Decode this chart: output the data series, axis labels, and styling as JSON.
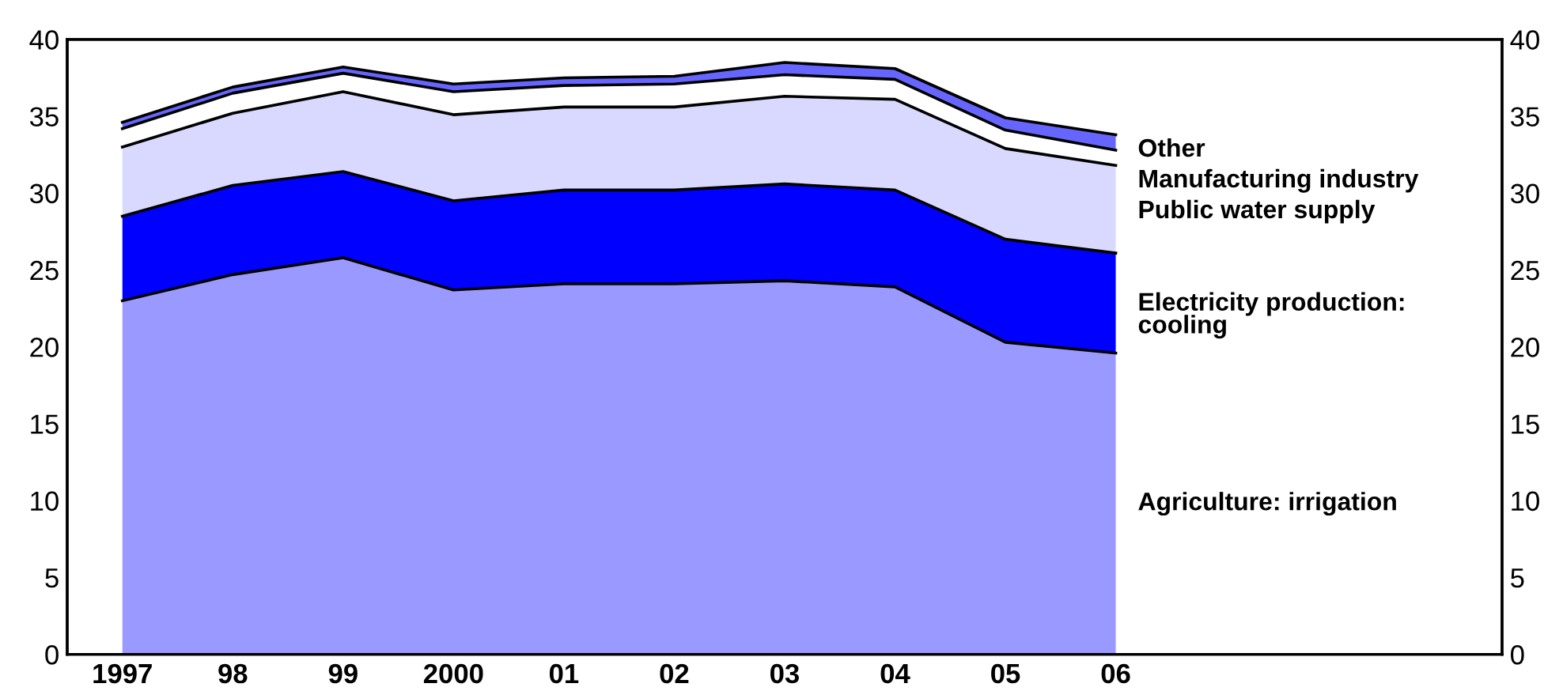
{
  "chart_data": {
    "type": "area",
    "stacked": true,
    "categories": [
      "1997",
      "98",
      "99",
      "2000",
      "01",
      "02",
      "03",
      "04",
      "05",
      "06",
      null,
      null,
      null
    ],
    "series": [
      {
        "name": "Agriculture: irrigation",
        "color": "#9999ff",
        "values": [
          23.0,
          24.7,
          25.8,
          23.7,
          24.1,
          24.1,
          24.3,
          23.9,
          20.3,
          19.6,
          null,
          null,
          null
        ]
      },
      {
        "name": "Electricity production: cooling",
        "color": "#0000ff",
        "values": [
          5.5,
          5.8,
          5.6,
          5.8,
          6.1,
          6.1,
          6.3,
          6.3,
          6.7,
          6.5,
          null,
          null,
          null
        ]
      },
      {
        "name": "Public water supply",
        "color": "#d9d9ff",
        "values": [
          4.5,
          4.7,
          5.2,
          5.6,
          5.4,
          5.4,
          5.7,
          5.9,
          5.9,
          5.7,
          null,
          null,
          null
        ]
      },
      {
        "name": "Manufacturing industry",
        "color": "#ffffff",
        "values": [
          1.2,
          1.3,
          1.2,
          1.5,
          1.4,
          1.5,
          1.4,
          1.3,
          1.2,
          1.0,
          null,
          null,
          null
        ]
      },
      {
        "name": "Other",
        "color": "#6666ff",
        "values": [
          0.4,
          0.4,
          0.4,
          0.5,
          0.5,
          0.5,
          0.8,
          0.7,
          0.8,
          1.0,
          null,
          null,
          null
        ]
      }
    ],
    "ylim": [
      0,
      40
    ],
    "yticks": [
      0,
      5,
      10,
      15,
      20,
      25,
      30,
      35,
      40
    ],
    "y2lim": [
      0,
      40
    ],
    "y2ticks": [
      0,
      5,
      10,
      15,
      20,
      25,
      30,
      35,
      40
    ],
    "grid": false,
    "legend": false
  }
}
